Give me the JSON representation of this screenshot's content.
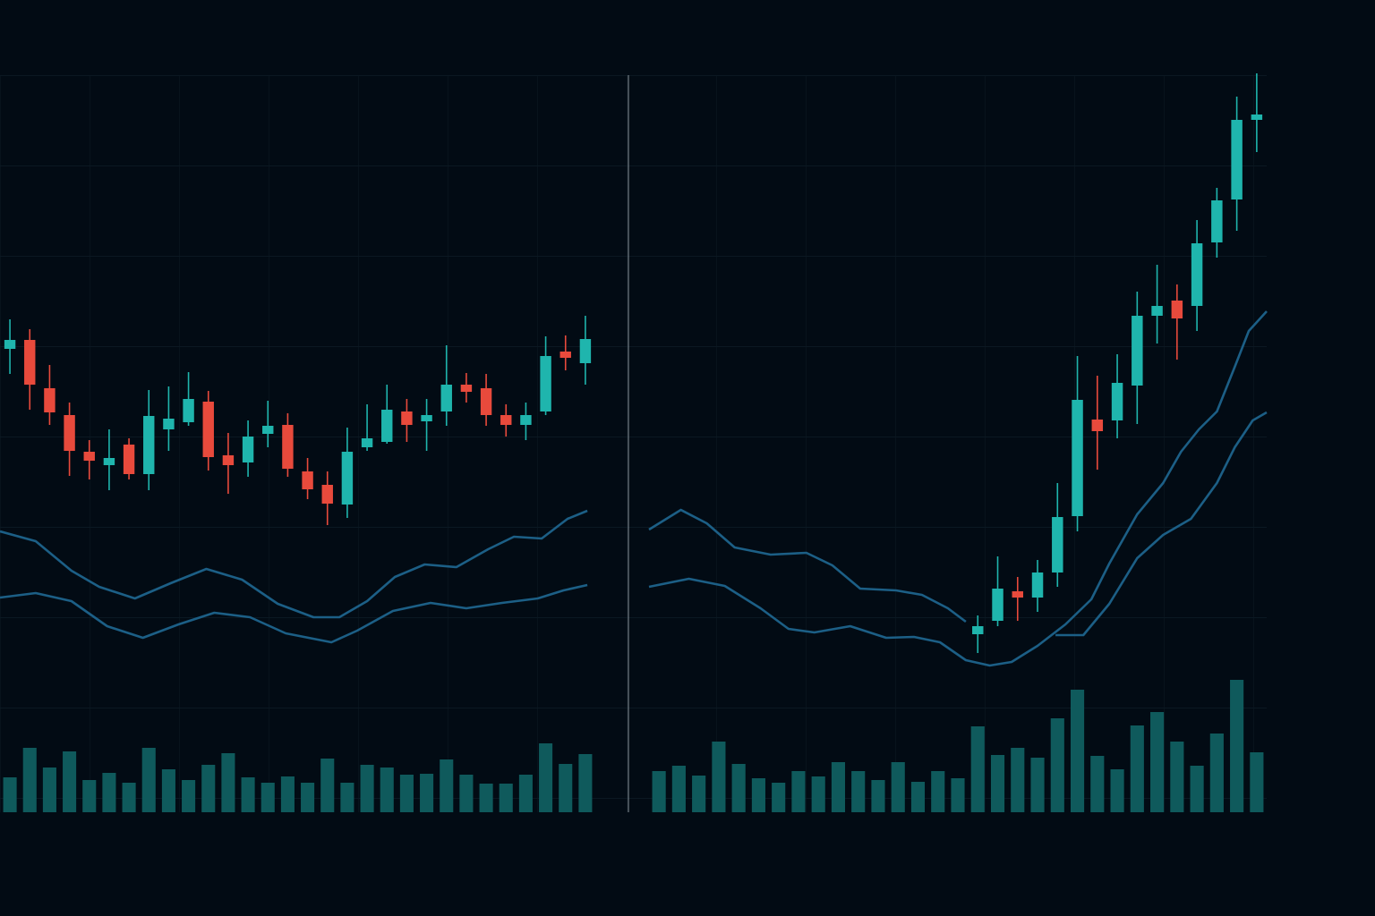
{
  "chart_data": [
    {
      "type": "candlestick",
      "xlim": [
        0,
        30
      ],
      "ylim": [
        0,
        1024
      ],
      "up_color": "#1fb5ad",
      "down_color": "#e84a3c",
      "x": [
        0.5,
        1.5,
        2.5,
        3.5,
        4.5,
        5.5,
        6.5,
        7.5,
        8.5,
        9.5,
        10.5,
        11.5,
        12.5,
        13.5,
        14.5,
        15.5,
        16.5,
        17.5,
        18.5,
        19.5,
        20.5,
        21.5,
        22.5,
        23.5,
        24.5,
        25.5,
        26.5,
        27.5,
        28.5,
        29.5
      ],
      "open": [
        634,
        644,
        590,
        560,
        519,
        504,
        527,
        494,
        544,
        552,
        575,
        515,
        507,
        539,
        549,
        497,
        482,
        460,
        524,
        530,
        564,
        553,
        564,
        594,
        590,
        560,
        549,
        564,
        631,
        618
      ],
      "high": [
        667,
        656,
        616,
        574,
        532,
        544,
        534,
        588,
        592,
        608,
        587,
        540,
        554,
        576,
        562,
        512,
        497,
        546,
        572,
        594,
        578,
        578,
        638,
        607,
        606,
        572,
        574,
        648,
        649,
        671
      ],
      "low": [
        606,
        566,
        549,
        492,
        488,
        476,
        488,
        476,
        520,
        548,
        498,
        472,
        491,
        524,
        491,
        466,
        437,
        445,
        520,
        528,
        530,
        520,
        548,
        574,
        548,
        536,
        532,
        560,
        610,
        594
      ],
      "close": [
        644,
        594,
        563,
        520,
        509,
        512,
        494,
        559,
        556,
        578,
        513,
        504,
        536,
        548,
        500,
        477,
        461,
        519,
        534,
        566,
        549,
        560,
        594,
        586,
        560,
        549,
        560,
        626,
        624,
        645
      ],
      "series": [
        {
          "type": "line",
          "color": "#1c5f86",
          "x": [
            0,
            1.8,
            3.6,
            5.0,
            6.8,
            8.6,
            10.4,
            12.2,
            14.0,
            15.8,
            17.1,
            18.5,
            19.9,
            21.4,
            23.0,
            24.6,
            25.9,
            27.3,
            28.6,
            29.6
          ],
          "values": [
            430,
            419,
            386,
            368,
            355,
            372,
            388,
            376,
            349,
            334,
            334,
            352,
            379,
            393,
            390,
            410,
            424,
            422,
            444,
            453
          ]
        },
        {
          "type": "line",
          "color": "#1c5f86",
          "x": [
            0,
            1.8,
            3.6,
            5.4,
            7.2,
            9.0,
            10.8,
            12.6,
            14.4,
            16.7,
            18.0,
            19.8,
            21.7,
            23.5,
            25.3,
            27.1,
            28.4,
            29.6
          ],
          "values": [
            356,
            361,
            352,
            324,
            311,
            326,
            339,
            334,
            316,
            306,
            319,
            341,
            350,
            344,
            350,
            355,
            364,
            370
          ]
        }
      ],
      "volume": {
        "color": "#0f5a5c",
        "ylim": [
          0,
          200
        ],
        "x": [
          0.5,
          1.5,
          2.5,
          3.5,
          4.5,
          5.5,
          6.5,
          7.5,
          8.5,
          9.5,
          10.5,
          11.5,
          12.5,
          13.5,
          14.5,
          15.5,
          16.5,
          17.5,
          18.5,
          19.5,
          20.5,
          21.5,
          22.5,
          23.5,
          24.5,
          25.5,
          26.5,
          27.5,
          28.5,
          29.5
        ],
        "values": [
          39,
          72,
          50,
          68,
          36,
          44,
          33,
          72,
          48,
          36,
          53,
          66,
          39,
          33,
          40,
          33,
          60,
          33,
          53,
          50,
          42,
          43,
          59,
          42,
          32,
          32,
          42,
          77,
          54,
          65
        ]
      }
    },
    {
      "type": "candlestick",
      "xlim": [
        0,
        31
      ],
      "ylim": [
        0,
        1024
      ],
      "up_color": "#1fb5ad",
      "down_color": "#e84a3c",
      "x": [
        16.5,
        17.5,
        18.5,
        19.5,
        20.5,
        21.5,
        22.5,
        23.5,
        24.5,
        25.5,
        26.5,
        27.5,
        28.5,
        29.5,
        30.5
      ],
      "open": [
        315,
        330,
        363,
        356,
        384,
        447,
        555,
        554,
        593,
        671,
        688,
        682,
        753,
        801,
        890
      ],
      "high": [
        336,
        402,
        379,
        398,
        484,
        626,
        604,
        628,
        698,
        728,
        706,
        778,
        814,
        916,
        942
      ],
      "low": [
        294,
        324,
        330,
        340,
        368,
        430,
        499,
        534,
        550,
        640,
        622,
        654,
        736,
        766,
        854
      ],
      "close": [
        324,
        366,
        356,
        384,
        446,
        577,
        542,
        596,
        671,
        682,
        668,
        752,
        800,
        890,
        896
      ],
      "series": [
        {
          "type": "line",
          "color": "#1c5f86",
          "x": [
            0,
            1.6,
            2.9,
            4.3,
            6.1,
            7.9,
            9.2,
            10.6,
            12.4,
            13.7,
            15.0,
            15.9
          ],
          "values": [
            432,
            454,
            439,
            412,
            404,
            406,
            392,
            366,
            364,
            359,
            344,
            329
          ]
        },
        {
          "type": "line",
          "color": "#1c5f86",
          "x": [
            0,
            2.0,
            3.8,
            5.6,
            7.0,
            8.3,
            10.1,
            11.9,
            13.3,
            14.6,
            15.9,
            17.1,
            18.2,
            19.5,
            20.9,
            22.2,
            23.1,
            24.5,
            25.8,
            26.7,
            27.6,
            28.5,
            29.4,
            30.1,
            31.0
          ],
          "values": [
            368,
            377,
            369,
            344,
            321,
            317,
            324,
            311,
            312,
            306,
            286,
            280,
            284,
            302,
            326,
            354,
            394,
            449,
            484,
            519,
            544,
            564,
            614,
            654,
            676
          ]
        },
        {
          "type": "line",
          "color": "#1c5f86",
          "x": [
            20.4,
            21.8,
            23.1,
            24.5,
            25.8,
            27.2,
            28.5,
            29.4,
            30.3,
            31.0
          ],
          "values": [
            314,
            314,
            349,
            400,
            426,
            444,
            484,
            524,
            554,
            563
          ]
        }
      ],
      "volume": {
        "color": "#0f5a5c",
        "ylim": [
          0,
          200
        ],
        "x": [
          0.5,
          1.5,
          2.5,
          3.5,
          4.5,
          5.5,
          6.5,
          7.5,
          8.5,
          9.5,
          10.5,
          11.5,
          12.5,
          13.5,
          14.5,
          15.5,
          16.5,
          17.5,
          18.5,
          19.5,
          20.5,
          21.5,
          22.5,
          23.5,
          24.5,
          25.5,
          26.5,
          27.5,
          28.5,
          29.5,
          30.5
        ],
        "values": [
          46,
          52,
          41,
          79,
          54,
          38,
          33,
          46,
          40,
          56,
          46,
          36,
          56,
          34,
          46,
          38,
          96,
          64,
          72,
          61,
          105,
          137,
          63,
          48,
          97,
          112,
          79,
          52,
          88,
          148,
          67
        ]
      }
    }
  ]
}
